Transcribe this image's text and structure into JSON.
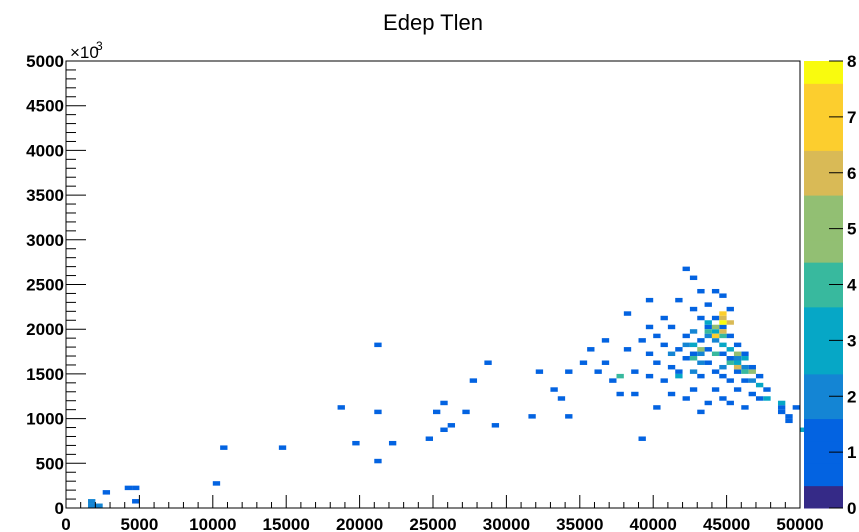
{
  "chart_data": {
    "type": "heatmap",
    "title": "Edep Tlen",
    "xlabel": "",
    "ylabel": "",
    "xlim": [
      0,
      50000
    ],
    "ylim": [
      0,
      5000
    ],
    "y_multiplier_label": "×10",
    "y_multiplier_exponent": "3",
    "x_ticks": [
      0,
      5000,
      10000,
      15000,
      20000,
      25000,
      30000,
      35000,
      40000,
      45000,
      50000
    ],
    "x_tick_labels": [
      "0",
      "5000",
      "10000",
      "15000",
      "20000",
      "25000",
      "30000",
      "35000",
      "40000",
      "45000",
      "50000"
    ],
    "y_ticks": [
      0,
      500,
      1000,
      1500,
      2000,
      2500,
      3000,
      3500,
      4000,
      4500,
      5000
    ],
    "y_tick_labels": [
      "0",
      "500",
      "1000",
      "1500",
      "2000",
      "2500",
      "3000",
      "3500",
      "4000",
      "4500",
      "5000"
    ],
    "bin_width": [
      500,
      50
    ],
    "z_max": 8,
    "z_ticks": [
      0,
      1,
      2,
      3,
      4,
      5,
      6,
      7,
      8
    ],
    "z_tick_labels": [
      "0",
      "1",
      "2",
      "3",
      "4",
      "5",
      "6",
      "7",
      "8"
    ],
    "palette": [
      "#352a87",
      "#0363e1",
      "#1485d4",
      "#06a7c6",
      "#38b99e",
      "#92bf73",
      "#d9ba56",
      "#fcce2e",
      "#f9fb0e"
    ],
    "cells": [
      [
        1500,
        0,
        2
      ],
      [
        2000,
        0,
        2
      ],
      [
        1500,
        50,
        2
      ],
      [
        2500,
        150,
        1
      ],
      [
        4000,
        200,
        1
      ],
      [
        4500,
        200,
        1
      ],
      [
        4500,
        50,
        1
      ],
      [
        10000,
        250,
        1
      ],
      [
        10500,
        650,
        1
      ],
      [
        14500,
        650,
        1
      ],
      [
        18500,
        1100,
        1
      ],
      [
        19500,
        700,
        1
      ],
      [
        21000,
        1050,
        1
      ],
      [
        21000,
        1800,
        1
      ],
      [
        21000,
        500,
        1
      ],
      [
        22000,
        700,
        1
      ],
      [
        24500,
        750,
        1
      ],
      [
        25500,
        850,
        1
      ],
      [
        25000,
        1050,
        1
      ],
      [
        25500,
        1150,
        1
      ],
      [
        26000,
        900,
        1
      ],
      [
        27000,
        1050,
        1
      ],
      [
        27500,
        1400,
        1
      ],
      [
        28500,
        1600,
        1
      ],
      [
        29000,
        900,
        1
      ],
      [
        31500,
        1000,
        1
      ],
      [
        32000,
        1500,
        1
      ],
      [
        33000,
        1300,
        1
      ],
      [
        33500,
        1200,
        1
      ],
      [
        34000,
        1500,
        1
      ],
      [
        34000,
        1000,
        1
      ],
      [
        35000,
        1600,
        1
      ],
      [
        35500,
        1750,
        1
      ],
      [
        36000,
        1500,
        1
      ],
      [
        36500,
        1600,
        1
      ],
      [
        36500,
        1850,
        1
      ],
      [
        37000,
        1400,
        1
      ],
      [
        37500,
        1250,
        1
      ],
      [
        38000,
        2150,
        1
      ],
      [
        38000,
        1750,
        1
      ],
      [
        38500,
        1500,
        1
      ],
      [
        38500,
        1250,
        1
      ],
      [
        39000,
        750,
        1
      ],
      [
        39000,
        1850,
        1
      ],
      [
        39500,
        1450,
        1
      ],
      [
        39500,
        2000,
        1
      ],
      [
        39500,
        2300,
        1
      ],
      [
        39500,
        1700,
        1
      ],
      [
        40000,
        1100,
        1
      ],
      [
        40000,
        1600,
        1
      ],
      [
        40000,
        1900,
        1
      ],
      [
        40500,
        1400,
        1
      ],
      [
        40500,
        1800,
        1
      ],
      [
        40500,
        2100,
        1
      ],
      [
        41000,
        1250,
        1
      ],
      [
        41000,
        1550,
        1
      ],
      [
        41000,
        2000,
        1
      ],
      [
        41500,
        1500,
        1
      ],
      [
        41500,
        1750,
        1
      ],
      [
        41500,
        2300,
        1
      ],
      [
        42000,
        1200,
        1
      ],
      [
        42000,
        1650,
        1
      ],
      [
        42000,
        1900,
        1
      ],
      [
        42000,
        2650,
        1
      ],
      [
        42500,
        1300,
        1
      ],
      [
        42500,
        1700,
        1
      ],
      [
        42500,
        2550,
        1
      ],
      [
        42500,
        2200,
        1
      ],
      [
        43000,
        1050,
        1
      ],
      [
        43000,
        1450,
        1
      ],
      [
        43000,
        1850,
        1
      ],
      [
        43000,
        2100,
        1
      ],
      [
        43000,
        2400,
        1
      ],
      [
        43500,
        1150,
        1
      ],
      [
        43500,
        1600,
        1
      ],
      [
        43500,
        1750,
        1
      ],
      [
        43500,
        2000,
        1
      ],
      [
        43500,
        2250,
        1
      ],
      [
        44000,
        1300,
        1
      ],
      [
        44000,
        1500,
        1
      ],
      [
        44000,
        2100,
        1
      ],
      [
        44000,
        2400,
        1
      ],
      [
        44500,
        1200,
        1
      ],
      [
        44500,
        1450,
        1
      ],
      [
        44500,
        1700,
        1
      ],
      [
        44500,
        2000,
        1
      ],
      [
        44500,
        2350,
        1
      ],
      [
        45000,
        1150,
        1
      ],
      [
        45000,
        1400,
        1
      ],
      [
        45000,
        1650,
        1
      ],
      [
        45000,
        1900,
        1
      ],
      [
        45000,
        2200,
        1
      ],
      [
        45500,
        1300,
        1
      ],
      [
        45500,
        1500,
        1
      ],
      [
        45500,
        1800,
        1
      ],
      [
        46000,
        1100,
        1
      ],
      [
        46000,
        1400,
        1
      ],
      [
        46000,
        1700,
        1
      ],
      [
        46500,
        1250,
        1
      ],
      [
        46500,
        1550,
        1
      ],
      [
        47000,
        1200,
        1
      ],
      [
        47000,
        1450,
        1
      ],
      [
        47500,
        1300,
        1
      ],
      [
        48500,
        1100,
        1
      ],
      [
        48500,
        1050,
        1
      ],
      [
        49000,
        1000,
        1
      ],
      [
        49000,
        950,
        1
      ],
      [
        49500,
        1100,
        1
      ],
      [
        43500,
        1900,
        2
      ],
      [
        44000,
        1850,
        2
      ],
      [
        42000,
        1800,
        2
      ],
      [
        42500,
        1950,
        2
      ],
      [
        45500,
        1650,
        2
      ],
      [
        46000,
        1550,
        2
      ],
      [
        43000,
        1700,
        2
      ],
      [
        44500,
        1550,
        2
      ],
      [
        46500,
        1400,
        2
      ],
      [
        43000,
        1600,
        2
      ],
      [
        41000,
        1700,
        2
      ],
      [
        42500,
        1500,
        2
      ],
      [
        44000,
        1950,
        3
      ],
      [
        43500,
        2050,
        3
      ],
      [
        45000,
        1750,
        3
      ],
      [
        44500,
        1800,
        3
      ],
      [
        46000,
        1650,
        3
      ],
      [
        42500,
        1800,
        3
      ],
      [
        45500,
        1600,
        3
      ],
      [
        47000,
        1350,
        3
      ],
      [
        41500,
        1450,
        3
      ],
      [
        47500,
        1200,
        3
      ],
      [
        48500,
        1150,
        3
      ],
      [
        50000,
        850,
        3
      ],
      [
        43500,
        1950,
        4
      ],
      [
        44500,
        1900,
        4
      ],
      [
        45000,
        1600,
        4
      ],
      [
        46000,
        1500,
        4
      ],
      [
        42500,
        1650,
        4
      ],
      [
        44000,
        1700,
        4
      ],
      [
        37500,
        1450,
        4
      ],
      [
        44000,
        2000,
        5
      ],
      [
        45500,
        1700,
        5
      ],
      [
        46500,
        1500,
        5
      ],
      [
        43000,
        1750,
        5
      ],
      [
        44500,
        2100,
        6
      ],
      [
        45000,
        2050,
        6
      ],
      [
        44500,
        1950,
        6
      ],
      [
        45500,
        1550,
        6
      ],
      [
        44000,
        1900,
        7
      ],
      [
        44500,
        2150,
        7
      ],
      [
        44500,
        2050,
        8
      ]
    ]
  }
}
